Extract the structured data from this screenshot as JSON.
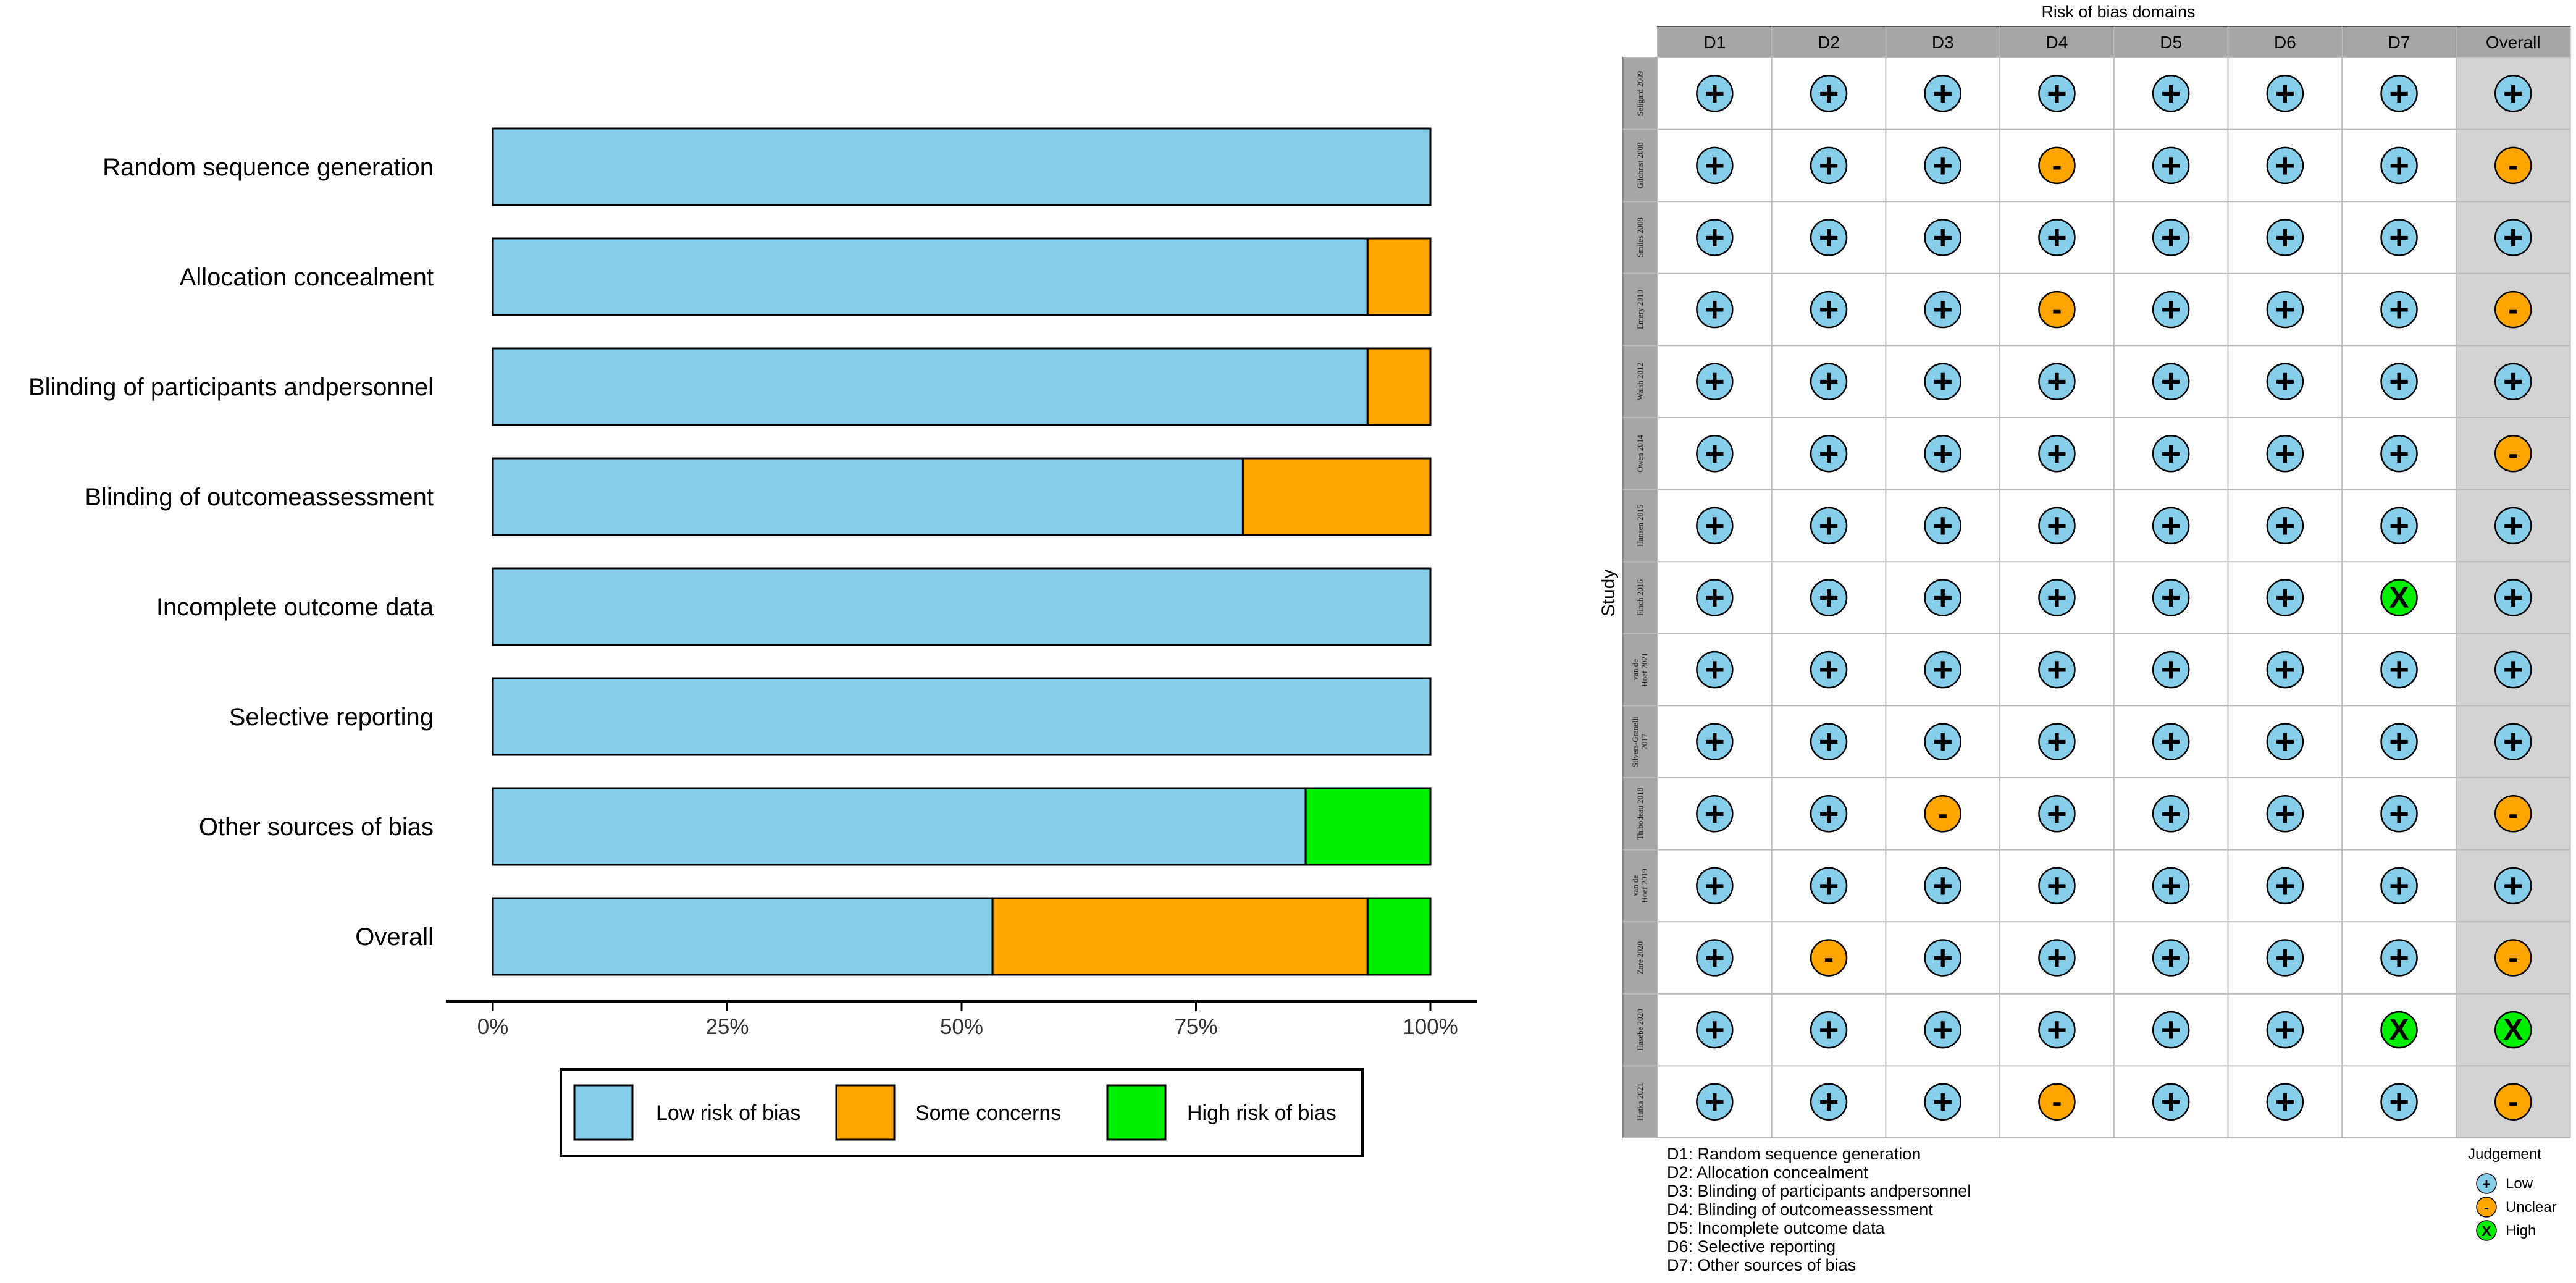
{
  "chart_data": [
    {
      "type": "bar",
      "orientation": "horizontal",
      "stacked": true,
      "percent": true,
      "categories": [
        "Random sequence generation",
        "Allocation concealment",
        "Blinding of participants andpersonnel",
        "Blinding of outcomeassessment",
        "Incomplete outcome data",
        "Selective reporting",
        "Other sources of bias",
        "Overall"
      ],
      "series": [
        {
          "name": "Low risk of bias",
          "color": "#87CEEB",
          "values": [
            100,
            93.3,
            93.3,
            80,
            100,
            100,
            86.7,
            53.3
          ]
        },
        {
          "name": "Some concerns",
          "color": "#FFA500",
          "values": [
            0,
            6.7,
            6.7,
            20,
            0,
            0,
            0,
            40
          ]
        },
        {
          "name": "High risk of bias",
          "color": "#00EE00",
          "values": [
            0,
            0,
            0,
            0,
            0,
            0,
            13.3,
            6.7
          ]
        }
      ],
      "xticks": [
        "0%",
        "25%",
        "50%",
        "75%",
        "100%"
      ],
      "xlim": [
        0,
        100
      ],
      "legend_position": "bottom"
    },
    {
      "type": "table",
      "title": "Risk of bias domains",
      "ylabel": "Study",
      "columns": [
        "D1",
        "D2",
        "D3",
        "D4",
        "D5",
        "D6",
        "D7",
        "Overall"
      ],
      "studies": [
        "Seligard 2009",
        "Gilchrist 2008",
        "Smiles 2008",
        "Emery 2010",
        "Walsh 2012",
        "Owen 2014",
        "Hansen 2015",
        "Finch 2016",
        "van de Hoef 2021",
        "Silvers-Granelli 2017",
        "Thibodeau 2018",
        "van de Hoef 2019",
        "Zare 2020",
        "Hasebe 2020",
        "Hutka 2021"
      ],
      "judgements": [
        [
          "+",
          "+",
          "+",
          "+",
          "+",
          "+",
          "+",
          "+"
        ],
        [
          "+",
          "+",
          "+",
          "-",
          "+",
          "+",
          "+",
          "-"
        ],
        [
          "+",
          "+",
          "+",
          "+",
          "+",
          "+",
          "+",
          "+"
        ],
        [
          "+",
          "+",
          "+",
          "-",
          "+",
          "+",
          "+",
          "-"
        ],
        [
          "+",
          "+",
          "+",
          "+",
          "+",
          "+",
          "+",
          "+"
        ],
        [
          "+",
          "+",
          "+",
          "+",
          "+",
          "+",
          "+",
          "-"
        ],
        [
          "+",
          "+",
          "+",
          "+",
          "+",
          "+",
          "+",
          "+"
        ],
        [
          "+",
          "+",
          "+",
          "+",
          "+",
          "+",
          "X",
          "+"
        ],
        [
          "+",
          "+",
          "+",
          "+",
          "+",
          "+",
          "+",
          "+"
        ],
        [
          "+",
          "+",
          "+",
          "+",
          "+",
          "+",
          "+",
          "+"
        ],
        [
          "+",
          "+",
          "-",
          "+",
          "+",
          "+",
          "+",
          "-"
        ],
        [
          "+",
          "+",
          "+",
          "+",
          "+",
          "+",
          "+",
          "+"
        ],
        [
          "+",
          "-",
          "+",
          "+",
          "+",
          "+",
          "+",
          "-"
        ],
        [
          "+",
          "+",
          "+",
          "+",
          "+",
          "+",
          "X",
          "X"
        ],
        [
          "+",
          "+",
          "+",
          "-",
          "+",
          "+",
          "+",
          "-"
        ]
      ],
      "domain_key": [
        "D1: Random sequence generation",
        "D2: Allocation concealment",
        "D3: Blinding of participants andpersonnel",
        "D4: Blinding of outcomeassessment",
        "D5: Incomplete outcome data",
        "D6: Selective reporting",
        "D7: Other sources of bias"
      ],
      "judgement_legend": {
        "title": "Judgement",
        "items": [
          {
            "symbol": "+",
            "label": "Low",
            "color": "#87CEEB"
          },
          {
            "symbol": "-",
            "label": "Unclear",
            "color": "#FFA500"
          },
          {
            "symbol": "X",
            "label": "High",
            "color": "#00EE00"
          }
        ]
      },
      "colors": {
        "header_bg": "#A6A6A6",
        "overall_bg": "#D3D3D3",
        "grid": "#BBBBBB",
        "study_bg": "#A6A6A6"
      }
    }
  ]
}
